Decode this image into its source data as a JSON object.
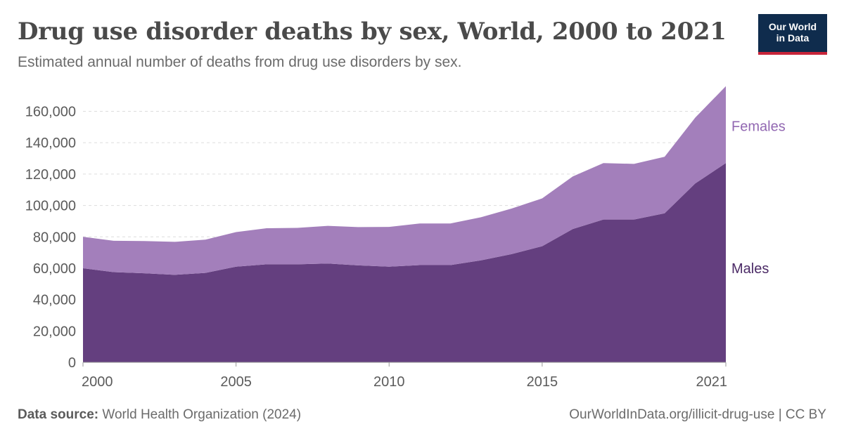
{
  "header": {
    "title": "Drug use disorder deaths by sex, World, 2000 to 2021",
    "subtitle": "Estimated annual number of deaths from drug use disorders by sex."
  },
  "logo": {
    "line1": "Our World",
    "line2": "in Data",
    "bg_color": "#0f2c4d",
    "accent_color": "#c8253a"
  },
  "footer": {
    "source_label": "Data source:",
    "source_text": "World Health Organization (2024)",
    "url_text": "OurWorldInData.org/illicit-drug-use | CC BY"
  },
  "chart_data": {
    "type": "area",
    "stacked": true,
    "title": "Drug use disorder deaths by sex, World, 2000 to 2021",
    "subtitle": "Estimated annual number of deaths from drug use disorders by sex.",
    "xlabel": "",
    "ylabel": "",
    "x": [
      2000,
      2001,
      2002,
      2003,
      2004,
      2005,
      2006,
      2007,
      2008,
      2009,
      2010,
      2011,
      2012,
      2013,
      2014,
      2015,
      2016,
      2017,
      2018,
      2019,
      2020,
      2021
    ],
    "xlim": [
      2000,
      2021
    ],
    "ylim": [
      0,
      175000
    ],
    "x_ticks": [
      2000,
      2005,
      2010,
      2015,
      2021
    ],
    "y_ticks": [
      0,
      20000,
      40000,
      60000,
      80000,
      100000,
      120000,
      140000,
      160000
    ],
    "y_tick_labels": [
      "0",
      "20,000",
      "40,000",
      "60,000",
      "80,000",
      "100,000",
      "120,000",
      "140,000",
      "160,000"
    ],
    "grid": "horizontal dashed",
    "legend": "inline labels at right",
    "series": [
      {
        "name": "Males",
        "color": "#643f7f",
        "values": [
          60000,
          57500,
          56800,
          55800,
          57000,
          61000,
          62500,
          62500,
          63000,
          61800,
          61000,
          62000,
          62000,
          65000,
          69000,
          74000,
          85000,
          91000,
          91000,
          95000,
          114000,
          127000
        ]
      },
      {
        "name": "Females",
        "color": "#a37fbb",
        "values": [
          20000,
          20000,
          20500,
          21000,
          21200,
          22000,
          23000,
          23200,
          24000,
          24400,
          25300,
          26500,
          26500,
          27500,
          29000,
          30500,
          33500,
          36000,
          35500,
          36000,
          42000,
          49000
        ]
      }
    ]
  }
}
